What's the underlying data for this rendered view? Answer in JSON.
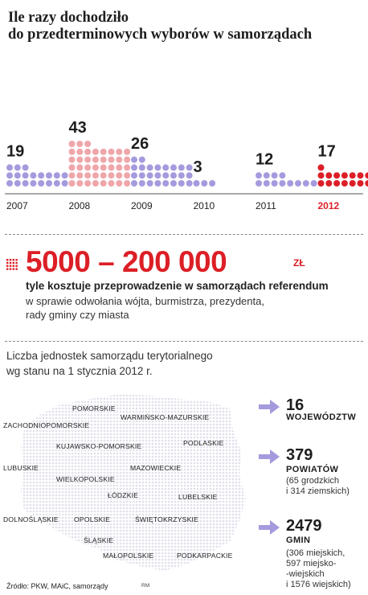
{
  "title": {
    "line1": "Ile razy dochodziło",
    "line2": "do przedterminowych wyborów w samorządach"
  },
  "chart_data": {
    "type": "bar",
    "categories": [
      "2007",
      "2008",
      "2009",
      "2010",
      "2011",
      "2012"
    ],
    "values": [
      19,
      43,
      26,
      3,
      12,
      17
    ],
    "value_labels": [
      "19",
      "43",
      "26",
      "3",
      "12",
      "17"
    ],
    "title": "Ile razy dochodziło do przedterminowych wyborów w samorządach",
    "xlabel": "",
    "ylabel": "",
    "colors": [
      "#a49bde",
      "#efa6ab",
      "#a49bde",
      "#a49bde",
      "#a49bde",
      "#dc1f26"
    ],
    "highlight_category": "2012"
  },
  "referendum": {
    "range": "5000 – 200 000",
    "unit": "ZŁ",
    "main": "tyle kosztuje przeprowadzenie w samorządach referendum",
    "sub_line1": "w sprawie odwołania wójta, burmistrza, prezydenta,",
    "sub_line2": "rady gminy czy miasta"
  },
  "units": {
    "title_line1": "Liczba jednostek samorządu terytorialnego",
    "title_line2": "wg stanu na 1 stycznia 2012 r."
  },
  "map": {
    "regions": [
      "POMORSKIE",
      "ZACHODNIOPOMORSKIE",
      "WARMIŃSKO-MAZURSKIE",
      "KUJAWSKO-POMORSKIE",
      "PODLASKIE",
      "LUBUSKIE",
      "MAZOWIECKIE",
      "WIELKOPOLSKIE",
      "ŁÓDZKIE",
      "LUBELSKIE",
      "DOLNOŚLĄSKIE",
      "OPOLSKIE",
      "ŚWIĘTOKRZYSKIE",
      "ŚLĄSKIE",
      "MAŁOPOLSKIE",
      "PODKARPACKIE"
    ]
  },
  "stats": [
    {
      "number": "16",
      "label": "WOJEWÓDZTW",
      "notes": []
    },
    {
      "number": "379",
      "label": "POWIATÓW",
      "notes": [
        "(65 grodzkich",
        "i 314 ziemskich)"
      ]
    },
    {
      "number": "2479",
      "label": "GMIN",
      "notes": [
        "(306 miejskich,",
        "597 miejsko-",
        "-wiejskich",
        "i 1576 wiejskich)"
      ]
    }
  ],
  "source": "Źródło: PKW, MAiC, samorządy",
  "author": "RM",
  "colors": {
    "accent_red": "#dc1f26",
    "dot_purple": "#a49bde",
    "dot_pink": "#efa6ab",
    "map_dot": "#e7e7f1",
    "arrow": "#a49bde"
  }
}
